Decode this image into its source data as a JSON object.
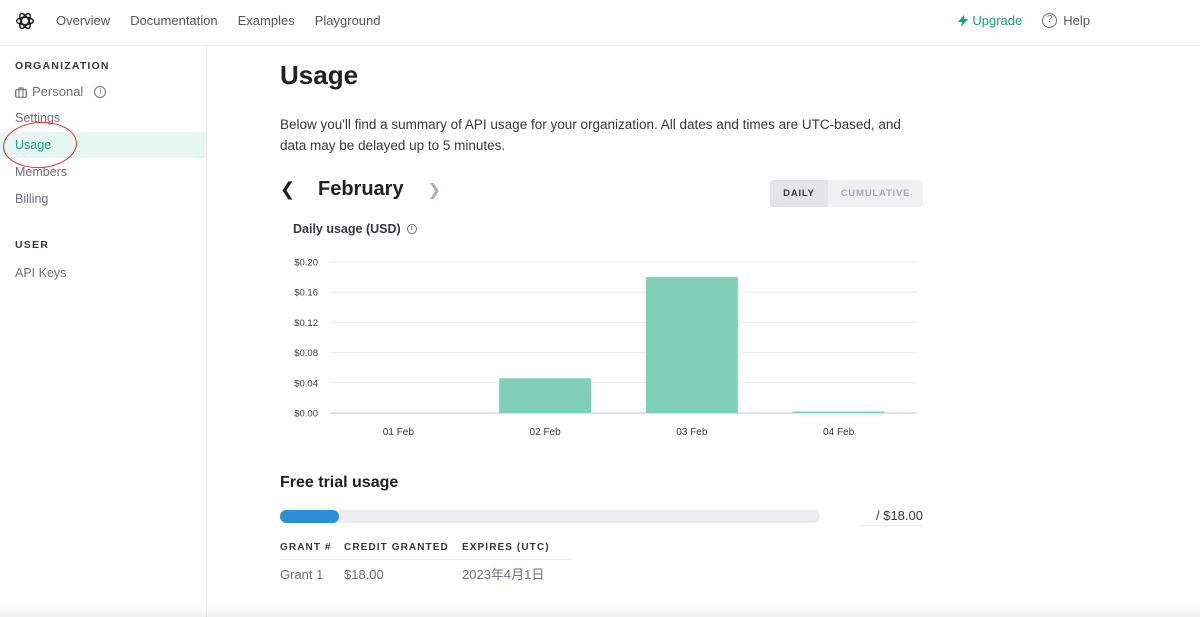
{
  "nav": {
    "links": [
      "Overview",
      "Documentation",
      "Examples",
      "Playground"
    ],
    "upgrade_label": "Upgrade",
    "help_label": "Help"
  },
  "sidebar": {
    "org_heading": "ORGANIZATION",
    "org_name": "Personal",
    "items": [
      "Settings",
      "Usage",
      "Members",
      "Billing"
    ],
    "active_item": "Usage",
    "user_heading": "USER",
    "user_items": [
      "API Keys"
    ]
  },
  "main": {
    "title": "Usage",
    "description": "Below you'll find a summary of API usage for your organization. All dates and times are UTC-based, and data may be delayed up to 5 minutes.",
    "month": "February",
    "toggle": {
      "daily": "DAILY",
      "cumulative": "CUMULATIVE",
      "selected": "DAILY"
    },
    "chart_title": "Daily usage (USD)"
  },
  "chart_data": {
    "type": "bar",
    "title": "Daily usage (USD)",
    "categories": [
      "01 Feb",
      "02 Feb",
      "03 Feb",
      "04 Feb"
    ],
    "values": [
      0.0,
      0.046,
      0.18,
      0.002
    ],
    "yticks": [
      "$0.00",
      "$0.04",
      "$0.08",
      "$0.12",
      "$0.16",
      "$0.20"
    ],
    "ylim": [
      0,
      0.2
    ],
    "grid": true,
    "color": "#80d0b7"
  },
  "trial": {
    "title": "Free trial usage",
    "used_fraction": 0.11,
    "total_label": "/ $18.00",
    "headers": [
      "GRANT #",
      "CREDIT GRANTED",
      "EXPIRES (UTC)"
    ],
    "rows": [
      [
        "Grant 1",
        "$18.00",
        "2023年4月1日"
      ]
    ]
  },
  "colors": {
    "accent": "#10a37f",
    "progress": "#2b8fd4",
    "annotation": "#d93025"
  }
}
